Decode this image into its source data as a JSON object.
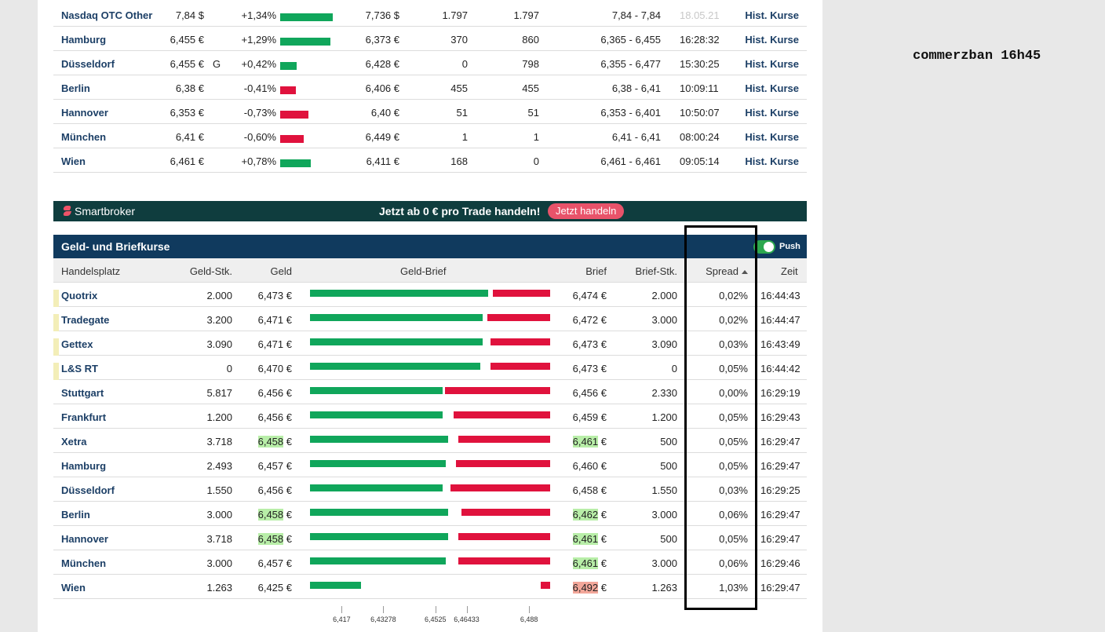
{
  "note": "commerzban 16h45",
  "top_table": {
    "rows": [
      {
        "name": "Nasdaq OTC Other",
        "last": "7,84 $",
        "flag": "",
        "change": "+1,34%",
        "dir": "up",
        "bar": 67,
        "prev": "7,736 $",
        "vol1": "1.797",
        "vol2": "1.797",
        "range": "7,84 - 7,84",
        "time": "18.05.21",
        "time_dim": true,
        "link": "Hist. Kurse"
      },
      {
        "name": "Hamburg",
        "last": "6,455 €",
        "flag": "",
        "change": "+1,29%",
        "dir": "up",
        "bar": 64,
        "prev": "6,373 €",
        "vol1": "370",
        "vol2": "860",
        "range": "6,365 - 6,455",
        "time": "16:28:32",
        "time_dim": false,
        "link": "Hist. Kurse"
      },
      {
        "name": "Düsseldorf",
        "last": "6,455 €",
        "flag": "G",
        "change": "+0,42%",
        "dir": "up",
        "bar": 21,
        "prev": "6,428 €",
        "vol1": "0",
        "vol2": "798",
        "range": "6,355 - 6,477",
        "time": "15:30:25",
        "time_dim": false,
        "link": "Hist. Kurse"
      },
      {
        "name": "Berlin",
        "last": "6,38 €",
        "flag": "",
        "change": "-0,41%",
        "dir": "down",
        "bar": 20,
        "prev": "6,406 €",
        "vol1": "455",
        "vol2": "455",
        "range": "6,38 - 6,41",
        "time": "10:09:11",
        "time_dim": false,
        "link": "Hist. Kurse"
      },
      {
        "name": "Hannover",
        "last": "6,353 €",
        "flag": "",
        "change": "-0,73%",
        "dir": "down",
        "bar": 36,
        "prev": "6,40 €",
        "vol1": "51",
        "vol2": "51",
        "range": "6,353 - 6,401",
        "time": "10:50:07",
        "time_dim": false,
        "link": "Hist. Kurse"
      },
      {
        "name": "München",
        "last": "6,41 €",
        "flag": "",
        "change": "-0,60%",
        "dir": "down",
        "bar": 30,
        "prev": "6,449 €",
        "vol1": "1",
        "vol2": "1",
        "range": "6,41 - 6,41",
        "time": "08:00:24",
        "time_dim": false,
        "link": "Hist. Kurse"
      },
      {
        "name": "Wien",
        "last": "6,461 €",
        "flag": "",
        "change": "+0,78%",
        "dir": "up",
        "bar": 39,
        "prev": "6,411 €",
        "vol1": "168",
        "vol2": "0",
        "range": "6,461 - 6,461",
        "time": "09:05:14",
        "time_dim": false,
        "link": "Hist. Kurse"
      }
    ]
  },
  "banner": {
    "brand": "Smartbroker",
    "text": "Jetzt ab 0 € pro Trade handeln!",
    "button": "Jetzt handeln"
  },
  "geld_brief": {
    "title": "Geld- und Briefkurse",
    "push_label": "Push",
    "headers": {
      "handelsplatz": "Handelsplatz",
      "geld_stk": "Geld-Stk.",
      "geld": "Geld",
      "geld_brief": "Geld-Brief",
      "brief": "Brief",
      "brief_stk": "Brief-Stk.",
      "spread": "Spread",
      "zeit": "Zeit"
    },
    "axis_min": 6.405,
    "axis_max": 6.496,
    "axis_ticks": [
      "6,417",
      "6,43278",
      "6,4525",
      "6,46433",
      "6,488"
    ],
    "axis_tick_values": [
      6.417,
      6.43278,
      6.4525,
      6.46433,
      6.488
    ],
    "rows": [
      {
        "name": "Quotrix",
        "marked": true,
        "geld_stk": "2.000",
        "geld_value": "6,473",
        "geld_hl": "",
        "brief_value": "6,474",
        "brief_hl": "",
        "geld_num": 6.473,
        "brief_num": 6.474,
        "brief_stk": "2.000",
        "spread": "0,02%",
        "time": "16:44:43"
      },
      {
        "name": "Tradegate",
        "marked": true,
        "geld_stk": "3.200",
        "geld_value": "6,471",
        "geld_hl": "",
        "brief_value": "6,472",
        "brief_hl": "",
        "geld_num": 6.471,
        "brief_num": 6.472,
        "brief_stk": "3.000",
        "spread": "0,02%",
        "time": "16:44:47"
      },
      {
        "name": "Gettex",
        "marked": true,
        "geld_stk": "3.090",
        "geld_value": "6,471",
        "geld_hl": "",
        "brief_value": "6,473",
        "brief_hl": "",
        "geld_num": 6.471,
        "brief_num": 6.473,
        "brief_stk": "3.090",
        "spread": "0,03%",
        "time": "16:43:49"
      },
      {
        "name": "L&S RT",
        "marked": true,
        "geld_stk": "0",
        "geld_value": "6,470",
        "geld_hl": "",
        "brief_value": "6,473",
        "brief_hl": "",
        "geld_num": 6.47,
        "brief_num": 6.473,
        "brief_stk": "0",
        "spread": "0,05%",
        "time": "16:44:42"
      },
      {
        "name": "Stuttgart",
        "marked": false,
        "geld_stk": "5.817",
        "geld_value": "6,456",
        "geld_hl": "",
        "brief_value": "6,456",
        "brief_hl": "",
        "geld_num": 6.456,
        "brief_num": 6.456,
        "brief_stk": "2.330",
        "spread": "0,00%",
        "time": "16:29:19"
      },
      {
        "name": "Frankfurt",
        "marked": false,
        "geld_stk": "1.200",
        "geld_value": "6,456",
        "geld_hl": "",
        "brief_value": "6,459",
        "brief_hl": "",
        "geld_num": 6.456,
        "brief_num": 6.459,
        "brief_stk": "1.200",
        "spread": "0,05%",
        "time": "16:29:43"
      },
      {
        "name": "Xetra",
        "marked": false,
        "geld_stk": "3.718",
        "geld_value": "6,458",
        "geld_hl": "green",
        "brief_value": "6,461",
        "brief_hl": "green",
        "geld_num": 6.458,
        "brief_num": 6.461,
        "brief_stk": "500",
        "spread": "0,05%",
        "time": "16:29:47"
      },
      {
        "name": "Hamburg",
        "marked": false,
        "geld_stk": "2.493",
        "geld_value": "6,457",
        "geld_hl": "",
        "brief_value": "6,460",
        "brief_hl": "",
        "geld_num": 6.457,
        "brief_num": 6.46,
        "brief_stk": "500",
        "spread": "0,05%",
        "time": "16:29:47"
      },
      {
        "name": "Düsseldorf",
        "marked": false,
        "geld_stk": "1.550",
        "geld_value": "6,456",
        "geld_hl": "",
        "brief_value": "6,458",
        "brief_hl": "",
        "geld_num": 6.456,
        "brief_num": 6.458,
        "brief_stk": "1.550",
        "spread": "0,03%",
        "time": "16:29:25"
      },
      {
        "name": "Berlin",
        "marked": false,
        "geld_stk": "3.000",
        "geld_value": "6,458",
        "geld_hl": "green",
        "brief_value": "6,462",
        "brief_hl": "green",
        "geld_num": 6.458,
        "brief_num": 6.462,
        "brief_stk": "3.000",
        "spread": "0,06%",
        "time": "16:29:47"
      },
      {
        "name": "Hannover",
        "marked": false,
        "geld_stk": "3.718",
        "geld_value": "6,458",
        "geld_hl": "green",
        "brief_value": "6,461",
        "brief_hl": "green",
        "geld_num": 6.458,
        "brief_num": 6.461,
        "brief_stk": "500",
        "spread": "0,05%",
        "time": "16:29:47"
      },
      {
        "name": "München",
        "marked": false,
        "geld_stk": "3.000",
        "geld_value": "6,457",
        "geld_hl": "",
        "brief_value": "6,461",
        "brief_hl": "green",
        "geld_num": 6.457,
        "brief_num": 6.461,
        "brief_stk": "3.000",
        "spread": "0,06%",
        "time": "16:29:46"
      },
      {
        "name": "Wien",
        "marked": false,
        "geld_stk": "1.263",
        "geld_value": "6,425",
        "geld_hl": "",
        "brief_value": "6,492",
        "brief_hl": "red",
        "geld_num": 6.425,
        "brief_num": 6.492,
        "brief_stk": "1.263",
        "spread": "1,03%",
        "time": "16:29:47"
      }
    ]
  },
  "currency": "€",
  "colors": {
    "green": "#10a65b",
    "red": "#e0123d",
    "header_navy": "#103a5e",
    "banner_teal": "#0f3d3e"
  }
}
